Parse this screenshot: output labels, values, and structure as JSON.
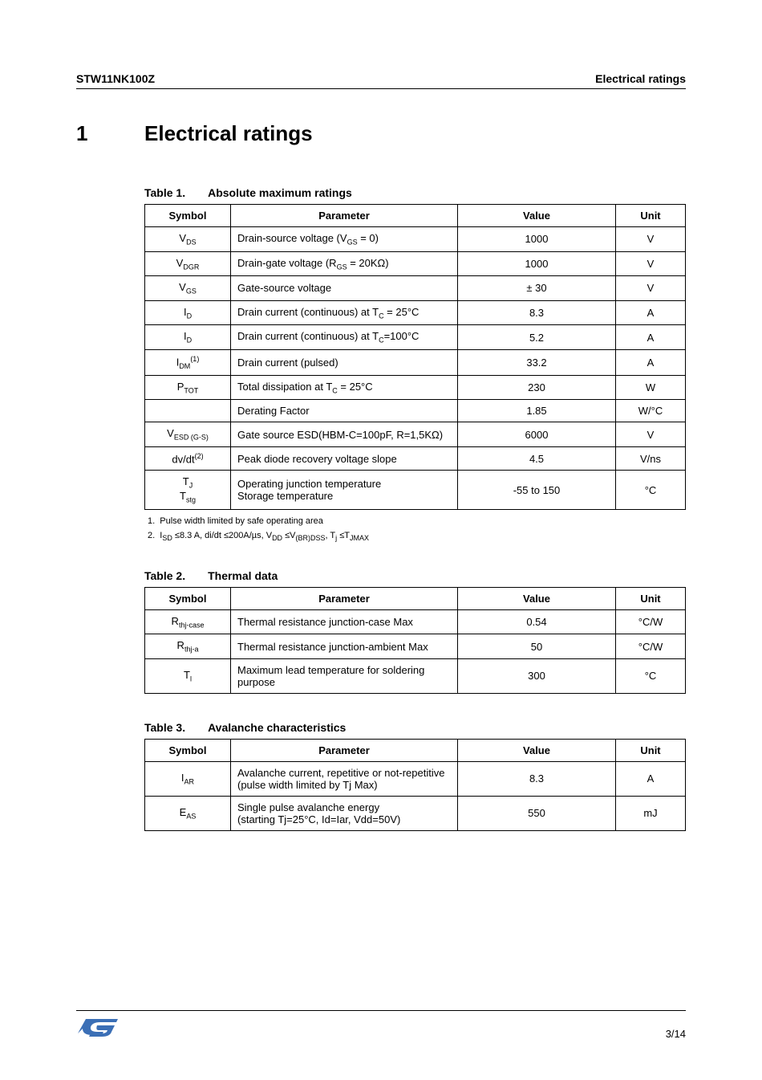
{
  "header": {
    "left": "STW11NK100Z",
    "right": "Electrical ratings"
  },
  "section": {
    "num": "1",
    "title": "Electrical ratings"
  },
  "table1": {
    "caption_num": "Table 1.",
    "caption_title": "Absolute maximum ratings",
    "cols": {
      "symbol": "Symbol",
      "parameter": "Parameter",
      "value": "Value",
      "unit": "Unit"
    },
    "rows": [
      {
        "sym": "V<span class='sub'>DS</span>",
        "param": "Drain-source voltage (V<span class='sub'>GS</span> = 0)",
        "val": "1000",
        "unit": "V"
      },
      {
        "sym": "V<span class='sub'>DGR</span>",
        "param": "Drain-gate voltage (R<span class='sub'>GS</span> = 20KΩ)",
        "val": "1000",
        "unit": "V"
      },
      {
        "sym": "V<span class='sub'>GS</span>",
        "param": "Gate-source voltage",
        "val": "± 30",
        "unit": "V"
      },
      {
        "sym": "I<span class='sub'>D</span>",
        "param": "Drain current (continuous) at T<span class='sub'>C</span> = 25°C",
        "val": "8.3",
        "unit": "A"
      },
      {
        "sym": "I<span class='sub'>D</span>",
        "param": "Drain current (continuous) at T<span class='sub'>C</span>=100°C",
        "val": "5.2",
        "unit": "A"
      },
      {
        "sym": "I<span class='sub'>DM</span><span class='sup'>(1)</span>",
        "param": "Drain current (pulsed)",
        "val": "33.2",
        "unit": "A"
      },
      {
        "sym": "P<span class='sub'>TOT</span>",
        "param": "Total dissipation at T<span class='sub'>C</span> = 25°C",
        "val": "230",
        "unit": "W"
      },
      {
        "sym": "",
        "param": "Derating Factor",
        "val": "1.85",
        "unit": "W/°C"
      },
      {
        "sym": "V<span class='sub'>ESD (G-S)</span>",
        "param": "Gate source ESD(HBM-C=100pF, R=1,5KΩ)",
        "val": "6000",
        "unit": "V"
      },
      {
        "sym": "dv/dt<span class='sup'>(2)</span>",
        "param": "Peak diode recovery voltage slope",
        "val": "4.5",
        "unit": "V/ns"
      },
      {
        "sym": "T<span class='sub'>J</span><br>T<span class='sub'>stg</span>",
        "param": "Operating junction temperature<br>Storage temperature",
        "val": "-55 to 150",
        "unit": "°C"
      }
    ],
    "footnotes": [
      "1.&nbsp;&nbsp;Pulse width limited by safe operating area",
      "2.&nbsp;&nbsp;I<span class='sub'>SD</span> ≤8.3 A, di/dt ≤200A/µs, V<span class='sub'>DD</span> ≤V<span class='sub'>(BR)DSS</span>, T<span class='sub'>j</span> ≤T<span class='sub'>JMAX</span>"
    ]
  },
  "table2": {
    "caption_num": "Table 2.",
    "caption_title": "Thermal data",
    "rows": [
      {
        "sym": "R<span class='sub'>thj-case</span>",
        "param": "Thermal resistance junction-case Max",
        "val": "0.54",
        "unit": "°C/W"
      },
      {
        "sym": "R<span class='sub'>thj-a</span>",
        "param": "Thermal resistance junction-ambient Max",
        "val": "50",
        "unit": "°C/W"
      },
      {
        "sym": "T<span class='sub'>l</span>",
        "param": "Maximum lead temperature for soldering purpose",
        "val": "300",
        "unit": "°C"
      }
    ]
  },
  "table3": {
    "caption_num": "Table 3.",
    "caption_title": "Avalanche characteristics",
    "rows": [
      {
        "sym": "I<span class='sub'>AR</span>",
        "param": "Avalanche current, repetitive or not-repetitive<br>(pulse width limited by Tj Max)",
        "val": "8.3",
        "unit": "A"
      },
      {
        "sym": "E<span class='sub'>AS</span>",
        "param": "Single pulse avalanche energy<br>(starting Tj=25°C, Id=Iar, Vdd=50V)",
        "val": "550",
        "unit": "mJ"
      }
    ]
  },
  "footer": {
    "page": "3/14"
  }
}
